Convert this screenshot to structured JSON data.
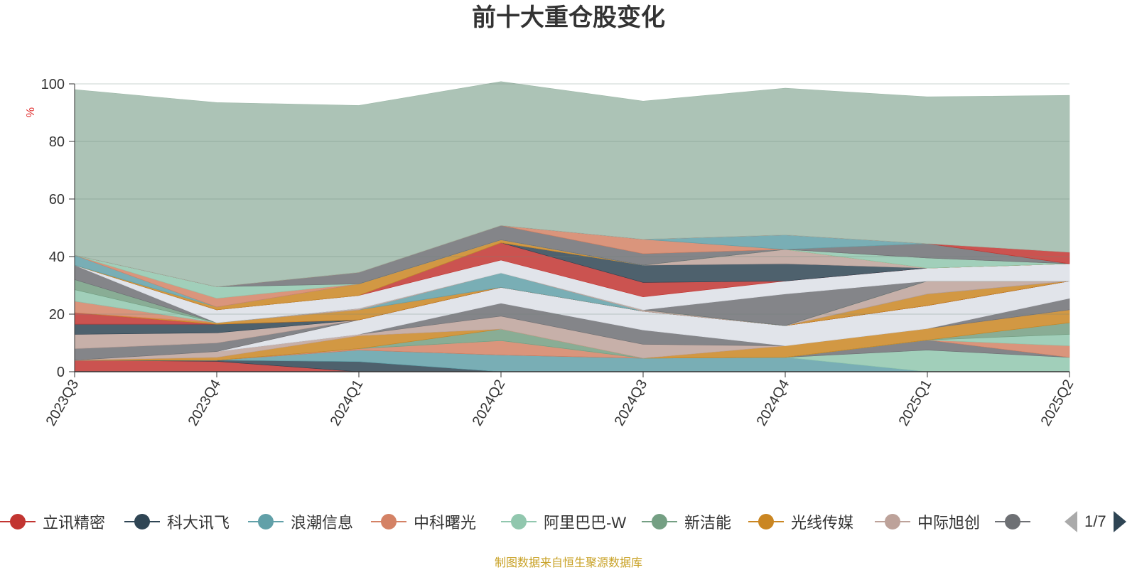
{
  "title": "前十大重仓股变化",
  "source_note": "制图数据来自恒生聚源数据库",
  "pager": {
    "text": "1/7"
  },
  "legend": [
    {
      "label": "立讯精密",
      "color": "#c23531"
    },
    {
      "label": "科大讯飞",
      "color": "#2f4554"
    },
    {
      "label": "浪潮信息",
      "color": "#61a0a8"
    },
    {
      "label": "中科曙光",
      "color": "#d48265"
    },
    {
      "label": "阿里巴巴-W",
      "color": "#91c7ae"
    },
    {
      "label": "新洁能",
      "color": "#749f83"
    },
    {
      "label": "光线传媒",
      "color": "#ca8622"
    },
    {
      "label": "中际旭创",
      "color": "#bda29a"
    },
    {
      "label": "",
      "color": "#6e7074"
    }
  ],
  "chart_data": {
    "type": "area",
    "title": "前十大重仓股变化",
    "ylabel": "%",
    "ylim": [
      0,
      100
    ],
    "yticks": [
      0,
      20,
      40,
      60,
      80,
      100
    ],
    "grid": true,
    "categories": [
      "2023Q3",
      "2023Q4",
      "2024Q1",
      "2024Q2",
      "2024Q3",
      "2024Q4",
      "2025Q1",
      "2025Q2"
    ],
    "series": [
      {
        "color": "#c23531",
        "values": [
          4.0,
          3.6,
          0.0,
          0.0,
          0.0,
          0.0,
          0.0,
          0.0
        ]
      },
      {
        "color": "#2f4554",
        "values": [
          0.0,
          0.4,
          3.5,
          0.0,
          0.0,
          0.0,
          0.0,
          0.0
        ]
      },
      {
        "color": "#61a0a8",
        "values": [
          0.0,
          0.0,
          4.0,
          5.8,
          4.7,
          5.0,
          0.0,
          0.0
        ]
      },
      {
        "color": "#91c7ae",
        "values": [
          0.0,
          0.0,
          0.0,
          0.0,
          0.0,
          0.0,
          7.5,
          5.0
        ]
      },
      {
        "color": "#6e7074",
        "values": [
          0.0,
          0.0,
          0.0,
          0.0,
          0.0,
          0.0,
          3.5,
          0.0
        ]
      },
      {
        "color": "#d48265",
        "values": [
          0.0,
          0.0,
          0.5,
          5.0,
          0.0,
          0.0,
          0.0,
          4.0
        ]
      },
      {
        "color": "#91c7ae",
        "values": [
          0.0,
          0.0,
          0.0,
          0.0,
          0.0,
          0.0,
          0.0,
          4.0
        ]
      },
      {
        "color": "#749f83",
        "values": [
          0.0,
          0.0,
          0.0,
          4.0,
          0.0,
          0.0,
          0.0,
          4.0
        ]
      },
      {
        "color": "#ca8622",
        "values": [
          0.0,
          1.0,
          4.5,
          0.0,
          0.0,
          4.0,
          4.0,
          4.5
        ]
      },
      {
        "color": "#bda29a",
        "values": [
          0.0,
          2.0,
          0.5,
          4.5,
          4.8,
          0.0,
          0.0,
          0.0
        ]
      },
      {
        "color": "#6e7074",
        "values": [
          0.0,
          0.0,
          0.0,
          4.5,
          5.0,
          0.0,
          0.0,
          4.0
        ]
      },
      {
        "color": "#dcdfe6",
        "values": [
          0.0,
          0.0,
          5.0,
          5.5,
          6.5,
          7.0,
          8.0,
          6.0
        ]
      },
      {
        "color": "#bda29a",
        "values": [
          0.0,
          0.0,
          0.0,
          0.0,
          0.0,
          0.0,
          0.0,
          0.0
        ]
      },
      {
        "color": "#6e7074",
        "values": [
          4.0,
          3.0,
          0.0,
          0.0,
          0.0,
          0.0,
          0.0,
          0.0
        ]
      },
      {
        "color": "#bda29a",
        "values": [
          5.0,
          3.5,
          0.0,
          0.0,
          0.0,
          0.0,
          0.0,
          0.0
        ]
      },
      {
        "color": "#2f4554",
        "values": [
          3.5,
          3.0,
          0.0,
          0.0,
          0.0,
          0.0,
          0.0,
          0.0
        ]
      },
      {
        "color": "#c23531",
        "values": [
          4.0,
          0.0,
          0.0,
          0.0,
          0.0,
          0.0,
          0.0,
          0.0
        ]
      },
      {
        "color": "#ca8622",
        "values": [
          0.0,
          0.5,
          3.5,
          0.0,
          0.0,
          0.0,
          4.0,
          0.0
        ]
      },
      {
        "color": "#d48265",
        "values": [
          4.0,
          0.0,
          0.0,
          0.0,
          0.0,
          0.0,
          0.0,
          0.0
        ]
      },
      {
        "color": "#61a0a8",
        "values": [
          0.0,
          0.0,
          0.0,
          5.0,
          0.0,
          0.0,
          0.0,
          0.0
        ]
      },
      {
        "color": "#bda29a",
        "values": [
          0.0,
          0.0,
          0.5,
          0.0,
          0.5,
          0.0,
          4.5,
          0.0
        ]
      },
      {
        "color": "#91c7ae",
        "values": [
          4.0,
          0.0,
          0.0,
          0.0,
          0.0,
          0.0,
          0.0,
          0.0
        ]
      },
      {
        "color": "#749f83",
        "values": [
          3.5,
          0.0,
          0.0,
          0.0,
          0.0,
          0.0,
          0.0,
          0.0
        ]
      },
      {
        "color": "#6e7074",
        "values": [
          5.0,
          0.0,
          0.0,
          0.0,
          0.0,
          11.0,
          0.0,
          0.0
        ]
      },
      {
        "color": "#dcdfe6",
        "values": [
          0.0,
          4.5,
          4.5,
          4.5,
          4.5,
          4.5,
          4.5,
          6.0
        ]
      },
      {
        "color": "#c23531",
        "values": [
          0.0,
          0.0,
          0.0,
          6.0,
          5.0,
          0.0,
          0.0,
          0.0
        ]
      },
      {
        "color": "#2f4554",
        "values": [
          0.0,
          0.0,
          0.0,
          0.0,
          6.0,
          6.0,
          0.0,
          0.0
        ]
      },
      {
        "color": "#bda29a",
        "values": [
          0.0,
          0.0,
          0.0,
          0.0,
          0.0,
          5.0,
          0.0,
          0.0
        ]
      },
      {
        "color": "#ca8622",
        "values": [
          0.0,
          1.0,
          4.0,
          1.0,
          0.0,
          0.0,
          0.0,
          0.0
        ]
      },
      {
        "color": "#91c7ae",
        "values": [
          0.0,
          0.0,
          0.0,
          0.0,
          0.0,
          0.0,
          3.5,
          0.0
        ]
      },
      {
        "color": "#61a0a8",
        "values": [
          3.5,
          0.0,
          0.0,
          0.0,
          0.0,
          0.0,
          0.0,
          0.0
        ]
      },
      {
        "color": "#d48265",
        "values": [
          0.0,
          3.0,
          0.0,
          0.0,
          0.0,
          0.0,
          0.0,
          0.0
        ]
      },
      {
        "color": "#91c7ae",
        "values": [
          0.0,
          4.0,
          0.0,
          0.0,
          0.0,
          0.0,
          0.0,
          0.0
        ]
      },
      {
        "color": "#6e7074",
        "values": [
          0.0,
          0.0,
          4.0,
          5.0,
          4.0,
          0.0,
          5.0,
          0.0
        ]
      },
      {
        "color": "#d48265",
        "values": [
          0.0,
          0.0,
          0.0,
          0.0,
          5.0,
          0.0,
          0.0,
          0.0
        ]
      },
      {
        "color": "#61a0a8",
        "values": [
          0.0,
          0.0,
          0.0,
          0.0,
          0.0,
          5.0,
          0.0,
          0.0
        ]
      },
      {
        "color": "#c23531",
        "values": [
          0.0,
          0.0,
          0.0,
          0.0,
          0.0,
          0.0,
          0.0,
          4.0
        ]
      },
      {
        "color": "#9eb9a9",
        "values": [
          57.5,
          64.0,
          58.0,
          50.0,
          48.0,
          51.0,
          51.0,
          54.5
        ]
      }
    ]
  }
}
